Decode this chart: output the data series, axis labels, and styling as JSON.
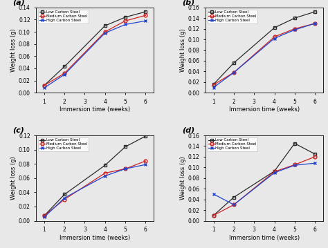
{
  "x_all": [
    1,
    2,
    4,
    5,
    6
  ],
  "panels": [
    {
      "label": "(a)",
      "ylim": [
        0.0,
        0.14
      ],
      "yticks": [
        0.0,
        0.02,
        0.04,
        0.06,
        0.08,
        0.1,
        0.12,
        0.14
      ],
      "series": [
        {
          "name": "Low Carbon Steel",
          "color": "#2b2b2b",
          "marker": "s",
          "data": [
            0.012,
            0.043,
            0.11,
            0.124,
            0.133
          ]
        },
        {
          "name": "Medium Carbon Steel",
          "color": "#cc2222",
          "marker": "o",
          "data": [
            0.012,
            0.032,
            0.1,
            0.118,
            0.127
          ]
        },
        {
          "name": "High Carbon Steel",
          "color": "#2244cc",
          "marker": "x",
          "data": [
            0.008,
            0.03,
            0.098,
            0.112,
            0.118
          ]
        }
      ]
    },
    {
      "label": "(b)",
      "ylim": [
        0.0,
        0.16
      ],
      "yticks": [
        0.0,
        0.02,
        0.04,
        0.06,
        0.08,
        0.1,
        0.12,
        0.14,
        0.16
      ],
      "series": [
        {
          "name": "Low Carbon Steel",
          "color": "#2b2b2b",
          "marker": "s",
          "data": [
            0.016,
            0.056,
            0.122,
            0.14,
            0.152
          ]
        },
        {
          "name": "Medium Carbon Steel",
          "color": "#cc2222",
          "marker": "o",
          "data": [
            0.015,
            0.038,
            0.105,
            0.12,
            0.13
          ]
        },
        {
          "name": "High Carbon Steel",
          "color": "#2244cc",
          "marker": "x",
          "data": [
            0.01,
            0.038,
            0.102,
            0.118,
            0.13
          ]
        }
      ]
    },
    {
      "label": "(c)",
      "ylim": [
        0.0,
        0.12
      ],
      "yticks": [
        0.0,
        0.02,
        0.04,
        0.06,
        0.08,
        0.1,
        0.12
      ],
      "series": [
        {
          "name": "Low Carbon Steel",
          "color": "#2b2b2b",
          "marker": "s",
          "data": [
            0.007,
            0.037,
            0.078,
            0.104,
            0.119
          ]
        },
        {
          "name": "Medium Carbon Steel",
          "color": "#cc2222",
          "marker": "o",
          "data": [
            0.007,
            0.03,
            0.067,
            0.073,
            0.084
          ]
        },
        {
          "name": "High Carbon Steel",
          "color": "#2244cc",
          "marker": "x",
          "data": [
            0.005,
            0.032,
            0.063,
            0.073,
            0.079
          ]
        }
      ]
    },
    {
      "label": "(d)",
      "ylim": [
        0.0,
        0.16
      ],
      "yticks": [
        0.0,
        0.02,
        0.04,
        0.06,
        0.08,
        0.1,
        0.12,
        0.14,
        0.16
      ],
      "series": [
        {
          "name": "Low Carbon Steel",
          "color": "#2b2b2b",
          "marker": "s",
          "data": [
            0.01,
            0.044,
            0.093,
            0.145,
            0.125
          ]
        },
        {
          "name": "Medium Carbon Steel",
          "color": "#cc2222",
          "marker": "o",
          "data": [
            0.01,
            0.03,
            0.092,
            0.105,
            0.12
          ]
        },
        {
          "name": "High Carbon Steel",
          "color": "#2244cc",
          "marker": "x",
          "data": [
            0.05,
            0.03,
            0.09,
            0.104,
            0.108
          ]
        }
      ]
    }
  ],
  "xlabel": "Immersion time (weeks)",
  "ylabel": "Weight loss (g)",
  "xticks": [
    1,
    2,
    3,
    4,
    5,
    6
  ],
  "xlim": [
    0.6,
    6.4
  ],
  "bg_color": "#e8e8e8",
  "legend_names": [
    "Low Carbon Steel",
    "Medium Carbon Steel",
    "High Carbon Steel"
  ],
  "legend_colors": [
    "#2b2b2b",
    "#cc2222",
    "#2244cc"
  ],
  "legend_markers": [
    "s",
    "o",
    "x"
  ]
}
